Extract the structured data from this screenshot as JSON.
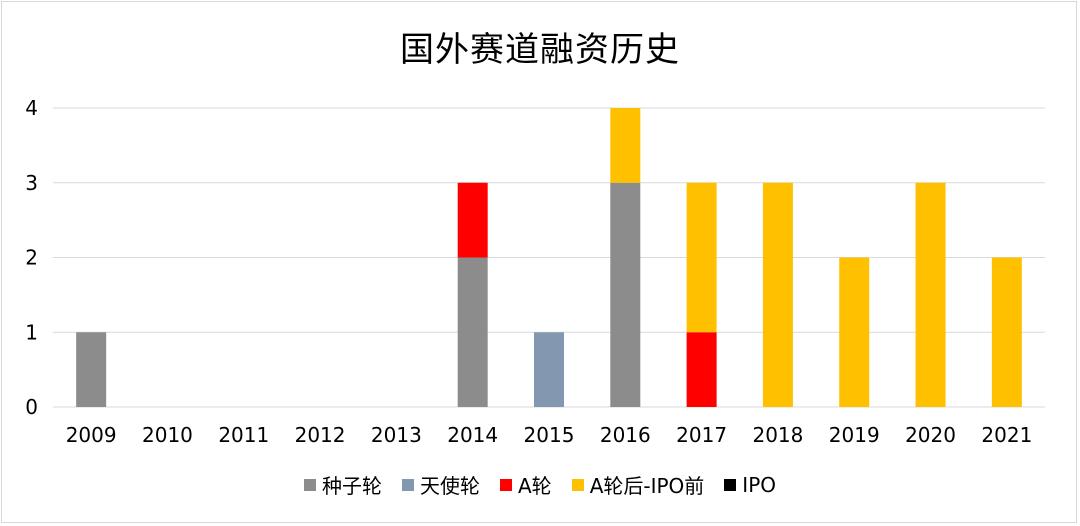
{
  "chart_data": {
    "type": "bar",
    "stacked": true,
    "title": "国外赛道融资历史",
    "categories": [
      "2009",
      "2010",
      "2011",
      "2012",
      "2013",
      "2014",
      "2015",
      "2016",
      "2017",
      "2018",
      "2019",
      "2020",
      "2021"
    ],
    "series": [
      {
        "name": "种子轮",
        "color": "#8c8c8c",
        "values": [
          1,
          0,
          0,
          0,
          0,
          2,
          0,
          3,
          0,
          0,
          0,
          0,
          0
        ]
      },
      {
        "name": "天使轮",
        "color": "#8497b0",
        "values": [
          0,
          0,
          0,
          0,
          0,
          0,
          1,
          0,
          0,
          0,
          0,
          0,
          0
        ]
      },
      {
        "name": "A轮",
        "color": "#ff0000",
        "values": [
          0,
          0,
          0,
          0,
          0,
          1,
          0,
          0,
          1,
          0,
          0,
          0,
          0
        ]
      },
      {
        "name": "A轮后-IPO前",
        "color": "#ffc000",
        "values": [
          0,
          0,
          0,
          0,
          0,
          0,
          0,
          1,
          2,
          3,
          2,
          3,
          2
        ]
      },
      {
        "name": "IPO",
        "color": "#000000",
        "values": [
          0,
          0,
          0,
          0,
          0,
          0,
          0,
          0,
          0,
          0,
          0,
          0,
          0
        ]
      }
    ],
    "ylim": [
      0,
      4
    ],
    "yticks": [
      "0",
      "1",
      "2",
      "3",
      "4"
    ],
    "grid": true,
    "legend_position": "bottom"
  }
}
